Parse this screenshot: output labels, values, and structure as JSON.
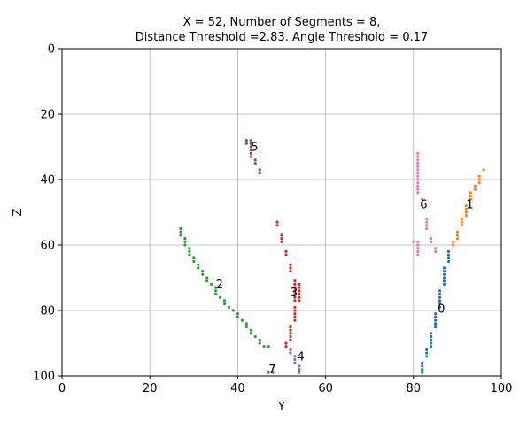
{
  "chart_data": {
    "type": "scatter",
    "title_line1": "X = 52, Number of Segments = 8,",
    "title_line2": "Distance Threshold =2.83. Angle Threshold = 0.17",
    "xlabel": "Y",
    "ylabel": "Z",
    "xlim": [
      0,
      100
    ],
    "ylim": [
      100,
      0
    ],
    "y_inverted": true,
    "grid": true,
    "xticks": [
      0,
      20,
      40,
      60,
      80,
      100
    ],
    "yticks": [
      0,
      20,
      40,
      60,
      80,
      100
    ],
    "series": [
      {
        "label": "0",
        "color": "#1f77b4",
        "label_pos": [
          85.5,
          79.5
        ],
        "points": [
          [
            82,
            99
          ],
          [
            82,
            98
          ],
          [
            82,
            97
          ],
          [
            82,
            96
          ],
          [
            83,
            94
          ],
          [
            83,
            93
          ],
          [
            83,
            92
          ],
          [
            84,
            91
          ],
          [
            84,
            90
          ],
          [
            84,
            89
          ],
          [
            84,
            88
          ],
          [
            84,
            87
          ],
          [
            85,
            85
          ],
          [
            85,
            84
          ],
          [
            85,
            83
          ],
          [
            85,
            82
          ],
          [
            85,
            81
          ],
          [
            86,
            79
          ],
          [
            86,
            78
          ],
          [
            86,
            77
          ],
          [
            86,
            76
          ],
          [
            86,
            75
          ],
          [
            86,
            74
          ],
          [
            87,
            72
          ],
          [
            87,
            71
          ],
          [
            87,
            70
          ],
          [
            87,
            69
          ],
          [
            87,
            68
          ],
          [
            87,
            67
          ],
          [
            88,
            65
          ],
          [
            88,
            64
          ],
          [
            88,
            63
          ],
          [
            88,
            62
          ]
        ]
      },
      {
        "label": "1",
        "color": "#ff7f0e",
        "label_pos": [
          92,
          47.5
        ],
        "points": [
          [
            89,
            60
          ],
          [
            89,
            59
          ],
          [
            90,
            58
          ],
          [
            90,
            57
          ],
          [
            90,
            56
          ],
          [
            91,
            54
          ],
          [
            91,
            53
          ],
          [
            91,
            52
          ],
          [
            92,
            51
          ],
          [
            92,
            50
          ],
          [
            92,
            49
          ],
          [
            92,
            48
          ],
          [
            93,
            46
          ],
          [
            93,
            45
          ],
          [
            93,
            44
          ],
          [
            94,
            43
          ],
          [
            94,
            42
          ],
          [
            95,
            41
          ],
          [
            95,
            40
          ],
          [
            95,
            39
          ],
          [
            96,
            37
          ]
        ]
      },
      {
        "label": "2",
        "color": "#2ca02c",
        "label_pos": [
          35,
          72
        ],
        "points": [
          [
            27,
            55
          ],
          [
            27,
            56
          ],
          [
            27,
            57
          ],
          [
            28,
            58
          ],
          [
            28,
            59
          ],
          [
            28,
            60
          ],
          [
            29,
            61
          ],
          [
            29,
            62
          ],
          [
            29,
            63
          ],
          [
            30,
            64
          ],
          [
            30,
            65
          ],
          [
            31,
            66
          ],
          [
            31,
            67
          ],
          [
            32,
            68
          ],
          [
            32,
            69
          ],
          [
            33,
            70
          ],
          [
            33,
            71
          ],
          [
            34,
            72
          ],
          [
            35,
            73
          ],
          [
            35,
            74
          ],
          [
            35,
            75
          ],
          [
            36,
            76
          ],
          [
            37,
            77
          ],
          [
            37,
            78
          ],
          [
            38,
            79
          ],
          [
            39,
            80
          ],
          [
            40,
            81
          ],
          [
            40,
            82
          ],
          [
            41,
            83
          ],
          [
            42,
            84
          ],
          [
            42,
            85
          ],
          [
            43,
            86
          ],
          [
            43,
            87
          ],
          [
            44,
            88
          ],
          [
            45,
            89
          ],
          [
            45,
            90
          ],
          [
            46,
            91
          ],
          [
            47,
            91
          ]
        ]
      },
      {
        "label": "3",
        "color": "#d62728",
        "label_pos": [
          52,
          74.5
        ],
        "points": [
          [
            49,
            53
          ],
          [
            49,
            54
          ],
          [
            50,
            57
          ],
          [
            50,
            58
          ],
          [
            50,
            59
          ],
          [
            51,
            62
          ],
          [
            51,
            63
          ],
          [
            52,
            66
          ],
          [
            52,
            67
          ],
          [
            52,
            68
          ],
          [
            53,
            71
          ],
          [
            53,
            72
          ],
          [
            53,
            73
          ],
          [
            53,
            74
          ],
          [
            53,
            75
          ],
          [
            53,
            76
          ],
          [
            53,
            77
          ],
          [
            54,
            72
          ],
          [
            54,
            73
          ],
          [
            54,
            74
          ],
          [
            54,
            75
          ],
          [
            54,
            76
          ],
          [
            54,
            77
          ],
          [
            53,
            79
          ],
          [
            53,
            80
          ],
          [
            53,
            81
          ],
          [
            53,
            82
          ],
          [
            53,
            83
          ],
          [
            52,
            85
          ],
          [
            52,
            86
          ],
          [
            52,
            87
          ],
          [
            52,
            88
          ],
          [
            52,
            89
          ],
          [
            51,
            90
          ],
          [
            51,
            91
          ]
        ]
      },
      {
        "label": "4",
        "color": "#9467bd",
        "label_pos": [
          53.5,
          94
        ],
        "points": [
          [
            52,
            92
          ],
          [
            52,
            93
          ],
          [
            53,
            94
          ],
          [
            53,
            95
          ],
          [
            53,
            96
          ],
          [
            54,
            97
          ],
          [
            54,
            98
          ],
          [
            54,
            99
          ]
        ]
      },
      {
        "label": "5",
        "color": "#8c564b",
        "label_pos": [
          43,
          30
        ],
        "points": [
          [
            42,
            28
          ],
          [
            42,
            29
          ],
          [
            43,
            28
          ],
          [
            43,
            29
          ],
          [
            43,
            30
          ],
          [
            43,
            31
          ],
          [
            43,
            32
          ],
          [
            43,
            33
          ],
          [
            44,
            34
          ],
          [
            44,
            35
          ],
          [
            45,
            37
          ],
          [
            45,
            38
          ]
        ]
      },
      {
        "label": "6",
        "color": "#e377c2",
        "label_pos": [
          81.5,
          47.5
        ],
        "points": [
          [
            81,
            32
          ],
          [
            81,
            33
          ],
          [
            81,
            34
          ],
          [
            81,
            35
          ],
          [
            81,
            36
          ],
          [
            81,
            37
          ],
          [
            81,
            38
          ],
          [
            81,
            39
          ],
          [
            81,
            40
          ],
          [
            81,
            41
          ],
          [
            81,
            42
          ],
          [
            81,
            43
          ],
          [
            81,
            44
          ],
          [
            82,
            46
          ],
          [
            82,
            47
          ],
          [
            82,
            48
          ],
          [
            83,
            52
          ],
          [
            83,
            53
          ],
          [
            83,
            54
          ],
          [
            83,
            55
          ],
          [
            84,
            58
          ],
          [
            84,
            59
          ],
          [
            85,
            61
          ],
          [
            85,
            62
          ],
          [
            81,
            59
          ],
          [
            81,
            60
          ],
          [
            81,
            61
          ],
          [
            81,
            62
          ],
          [
            81,
            63
          ],
          [
            80,
            59
          ]
        ]
      },
      {
        "label": "7",
        "color": "#7f7f7f",
        "label_pos": [
          47,
          98
        ],
        "points": [
          [
            47,
            99
          ],
          [
            48,
            99
          ]
        ]
      }
    ]
  }
}
